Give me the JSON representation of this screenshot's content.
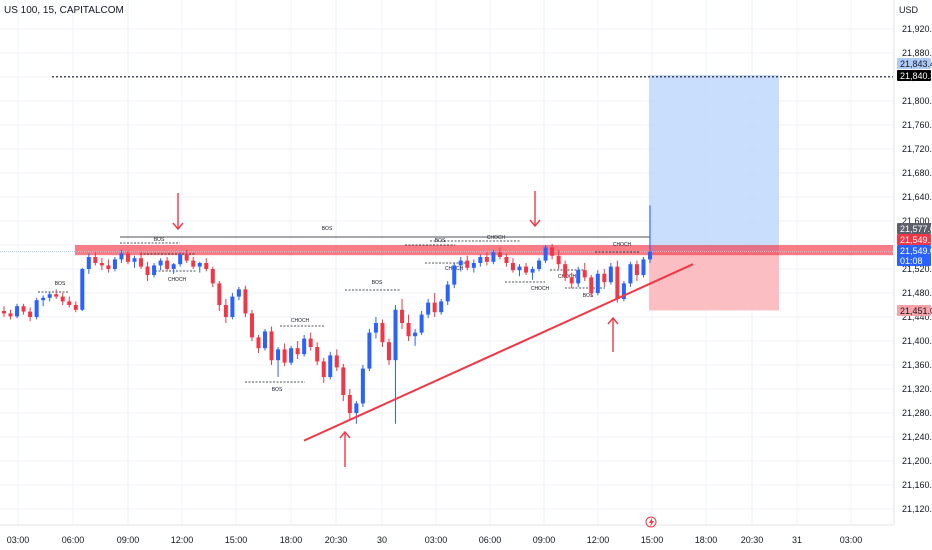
{
  "header": {
    "symbol_line": "US 100, 15, CAPITALCOM",
    "currency": "USD"
  },
  "price_axis": {
    "ticks": [
      "21,920.0",
      "21,880.0",
      "21,840.0",
      "21,800.0",
      "21,760.0",
      "21,720.0",
      "21,680.0",
      "21,640.0",
      "21,600.0",
      "21,560.0",
      "21,520.0",
      "21,480.0",
      "21,440.0",
      "21,400.0",
      "21,360.0",
      "21,320.0",
      "21,280.0",
      "21,240.0",
      "21,200.0",
      "21,160.0",
      "21,120.0"
    ],
    "tags": [
      {
        "text": "21,843.4",
        "bg": "#aecbfa",
        "fg": "#131722"
      },
      {
        "text": "21,840.3",
        "bg": "#000000",
        "fg": "#ffffff"
      },
      {
        "text": "21,577.0",
        "bg": "#5d606b",
        "fg": "#ffffff"
      },
      {
        "text": "21,549.1",
        "bg": "#f23645",
        "fg": "#ffffff"
      },
      {
        "text": "21,549.0",
        "bg": "#2962ff",
        "fg": "#ffffff"
      },
      {
        "text": "01:08",
        "bg": "#2962ff",
        "fg": "#ffffff"
      },
      {
        "text": "21,451.0",
        "bg": "#f7a1a8",
        "fg": "#131722"
      }
    ]
  },
  "time_axis": {
    "labels": [
      "03:00",
      "06:00",
      "09:00",
      "12:00",
      "15:00",
      "18:00",
      "20:30",
      "30",
      "03:00",
      "06:00",
      "09:00",
      "12:00",
      "15:00",
      "18:00",
      "20:30",
      "31",
      "03:00"
    ]
  },
  "annotations": {
    "bos": "BOS",
    "choch": "CHOCH",
    "marker_icon": "lightning-icon"
  },
  "colors": {
    "up": "#2962ff",
    "down": "#f23645",
    "resistance": "#f23645",
    "target_zone": "#bbd6fb",
    "stop_zone": "#f9b7bd",
    "trendline": "#f23645"
  },
  "chart_data": {
    "type": "candlestick",
    "symbol": "US 100",
    "interval": "15",
    "broker": "CAPITALCOM",
    "ylim": [
      21100,
      21940
    ],
    "price_ticks": [
      21920,
      21880,
      21840,
      21800,
      21760,
      21720,
      21680,
      21640,
      21600,
      21560,
      21520,
      21480,
      21440,
      21400,
      21360,
      21320,
      21280,
      21240,
      21200,
      21160,
      21120
    ],
    "resistance_zone": [
      21543,
      21560
    ],
    "long_position": {
      "target": 21843.4,
      "entry": 21549.0,
      "stop": 21451.0
    },
    "dotted_level": 21840.3,
    "last_price": 21549.0,
    "close_marker": 21577.0,
    "sell_marker": 21549.1,
    "trendline": [
      {
        "x": "29 19:30",
        "y": 21234
      },
      {
        "x": "30 16:15",
        "y": 21528
      }
    ],
    "candles_hint": "approximate OHLC path sampled from the image",
    "candles": [
      [
        21450,
        21458,
        21440,
        21446
      ],
      [
        21446,
        21452,
        21436,
        21441
      ],
      [
        21441,
        21462,
        21438,
        21458
      ],
      [
        21458,
        21462,
        21444,
        21449
      ],
      [
        21449,
        21456,
        21433,
        21440
      ],
      [
        21440,
        21472,
        21436,
        21468
      ],
      [
        21468,
        21476,
        21458,
        21472
      ],
      [
        21472,
        21482,
        21466,
        21478
      ],
      [
        21478,
        21486,
        21470,
        21474
      ],
      [
        21474,
        21480,
        21460,
        21466
      ],
      [
        21466,
        21474,
        21456,
        21460
      ],
      [
        21460,
        21466,
        21448,
        21452
      ],
      [
        21452,
        21522,
        21450,
        21520
      ],
      [
        21520,
        21546,
        21512,
        21540
      ],
      [
        21540,
        21548,
        21526,
        21530
      ],
      [
        21530,
        21538,
        21518,
        21526
      ],
      [
        21526,
        21536,
        21514,
        21520
      ],
      [
        21520,
        21540,
        21516,
        21536
      ],
      [
        21536,
        21552,
        21530,
        21546
      ],
      [
        21546,
        21550,
        21528,
        21532
      ],
      [
        21532,
        21542,
        21522,
        21538
      ],
      [
        21538,
        21548,
        21520,
        21524
      ],
      [
        21524,
        21532,
        21500,
        21510
      ],
      [
        21510,
        21530,
        21506,
        21526
      ],
      [
        21526,
        21538,
        21518,
        21534
      ],
      [
        21534,
        21540,
        21516,
        21520
      ],
      [
        21520,
        21530,
        21512,
        21528
      ],
      [
        21528,
        21548,
        21524,
        21544
      ],
      [
        21544,
        21552,
        21530,
        21534
      ],
      [
        21534,
        21540,
        21520,
        21524
      ],
      [
        21524,
        21532,
        21514,
        21530
      ],
      [
        21530,
        21538,
        21516,
        21520
      ],
      [
        21520,
        21524,
        21490,
        21496
      ],
      [
        21496,
        21500,
        21450,
        21460
      ],
      [
        21460,
        21470,
        21430,
        21440
      ],
      [
        21440,
        21480,
        21436,
        21474
      ],
      [
        21474,
        21490,
        21468,
        21486
      ],
      [
        21486,
        21492,
        21440,
        21446
      ],
      [
        21446,
        21452,
        21400,
        21406
      ],
      [
        21406,
        21410,
        21380,
        21388
      ],
      [
        21388,
        21420,
        21384,
        21416
      ],
      [
        21416,
        21424,
        21360,
        21368
      ],
      [
        21368,
        21390,
        21340,
        21386
      ],
      [
        21386,
        21396,
        21358,
        21364
      ],
      [
        21364,
        21392,
        21360,
        21388
      ],
      [
        21388,
        21400,
        21370,
        21378
      ],
      [
        21378,
        21410,
        21374,
        21404
      ],
      [
        21404,
        21414,
        21384,
        21390
      ],
      [
        21390,
        21398,
        21360,
        21366
      ],
      [
        21366,
        21372,
        21330,
        21340
      ],
      [
        21340,
        21382,
        21336,
        21376
      ],
      [
        21376,
        21386,
        21350,
        21356
      ],
      [
        21356,
        21362,
        21300,
        21310
      ],
      [
        21310,
        21320,
        21270,
        21280
      ],
      [
        21280,
        21300,
        21262,
        21296
      ],
      [
        21296,
        21360,
        21290,
        21354
      ],
      [
        21354,
        21420,
        21350,
        21414
      ],
      [
        21414,
        21440,
        21404,
        21430
      ],
      [
        21430,
        21436,
        21390,
        21398
      ],
      [
        21398,
        21404,
        21360,
        21368
      ],
      [
        21368,
        21460,
        21262,
        21452
      ],
      [
        21452,
        21470,
        21420,
        21430
      ],
      [
        21430,
        21444,
        21400,
        21408
      ],
      [
        21408,
        21420,
        21392,
        21414
      ],
      [
        21414,
        21450,
        21410,
        21444
      ],
      [
        21444,
        21470,
        21438,
        21464
      ],
      [
        21464,
        21480,
        21440,
        21448
      ],
      [
        21448,
        21470,
        21444,
        21466
      ],
      [
        21466,
        21500,
        21460,
        21494
      ],
      [
        21494,
        21530,
        21488,
        21526
      ],
      [
        21526,
        21540,
        21516,
        21534
      ],
      [
        21534,
        21542,
        21518,
        21522
      ],
      [
        21522,
        21536,
        21514,
        21530
      ],
      [
        21530,
        21544,
        21524,
        21540
      ],
      [
        21540,
        21548,
        21526,
        21532
      ],
      [
        21532,
        21552,
        21528,
        21548
      ],
      [
        21548,
        21556,
        21536,
        21540
      ],
      [
        21540,
        21546,
        21524,
        21530
      ],
      [
        21530,
        21538,
        21514,
        21518
      ],
      [
        21518,
        21528,
        21508,
        21524
      ],
      [
        21524,
        21530,
        21510,
        21514
      ],
      [
        21514,
        21524,
        21502,
        21520
      ],
      [
        21520,
        21538,
        21516,
        21534
      ],
      [
        21534,
        21560,
        21530,
        21556
      ],
      [
        21556,
        21562,
        21536,
        21542
      ],
      [
        21542,
        21552,
        21520,
        21528
      ],
      [
        21528,
        21534,
        21500,
        21506
      ],
      [
        21506,
        21514,
        21488,
        21496
      ],
      [
        21496,
        21524,
        21490,
        21518
      ],
      [
        21518,
        21530,
        21500,
        21506
      ],
      [
        21506,
        21510,
        21474,
        21480
      ],
      [
        21480,
        21518,
        21476,
        21512
      ],
      [
        21512,
        21520,
        21490,
        21498
      ],
      [
        21498,
        21530,
        21494,
        21524
      ],
      [
        21524,
        21534,
        21464,
        21470
      ],
      [
        21470,
        21500,
        21466,
        21496
      ],
      [
        21496,
        21532,
        21490,
        21528
      ],
      [
        21528,
        21534,
        21500,
        21510
      ],
      [
        21510,
        21540,
        21506,
        21536
      ],
      [
        21536,
        21626,
        21530,
        21549
      ]
    ]
  }
}
